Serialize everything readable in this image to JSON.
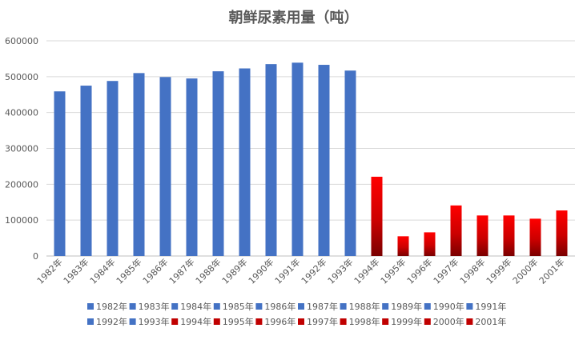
{
  "chart_data": {
    "type": "bar",
    "title": "朝鲜尿素用量（吨）",
    "xlabel": "",
    "ylabel": "",
    "ylim": [
      0,
      600000
    ],
    "yticks": [
      0,
      100000,
      200000,
      300000,
      400000,
      500000,
      600000
    ],
    "grid": true,
    "legend_position": "bottom",
    "categories": [
      "1982年",
      "1983年",
      "1984年",
      "1985年",
      "1986年",
      "1987年",
      "1988年",
      "1989年",
      "1990年",
      "1991年",
      "1992年",
      "1993年",
      "1994年",
      "1995年",
      "1996年",
      "1997年",
      "1998年",
      "1999年",
      "2000年",
      "2001年"
    ],
    "values": [
      459000,
      475000,
      488000,
      510000,
      499000,
      495000,
      515000,
      523000,
      535000,
      539000,
      533000,
      517000,
      221000,
      55000,
      66000,
      141000,
      113000,
      113000,
      104000,
      127000
    ],
    "colors": {
      "group_1": "#4472C4",
      "group_2_top": "#FF0000",
      "group_2_bottom": "#7A0000",
      "grid": "#D9D9D9",
      "axis": "#BFBFBF",
      "text": "#595959"
    },
    "color_groups": [
      "group_1",
      "group_1",
      "group_1",
      "group_1",
      "group_1",
      "group_1",
      "group_1",
      "group_1",
      "group_1",
      "group_1",
      "group_1",
      "group_1",
      "group_2",
      "group_2",
      "group_2",
      "group_2",
      "group_2",
      "group_2",
      "group_2",
      "group_2"
    ]
  }
}
